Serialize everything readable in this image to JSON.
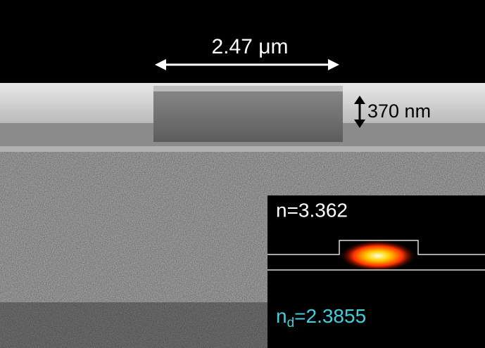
{
  "annotations": {
    "width_label": "2.47 μm",
    "height_label": "370 nm"
  },
  "inset": {
    "core_index": "n=3.362",
    "substrate_index": {
      "symbol": "n",
      "subscript": "d",
      "value": "=2.3855"
    }
  }
}
